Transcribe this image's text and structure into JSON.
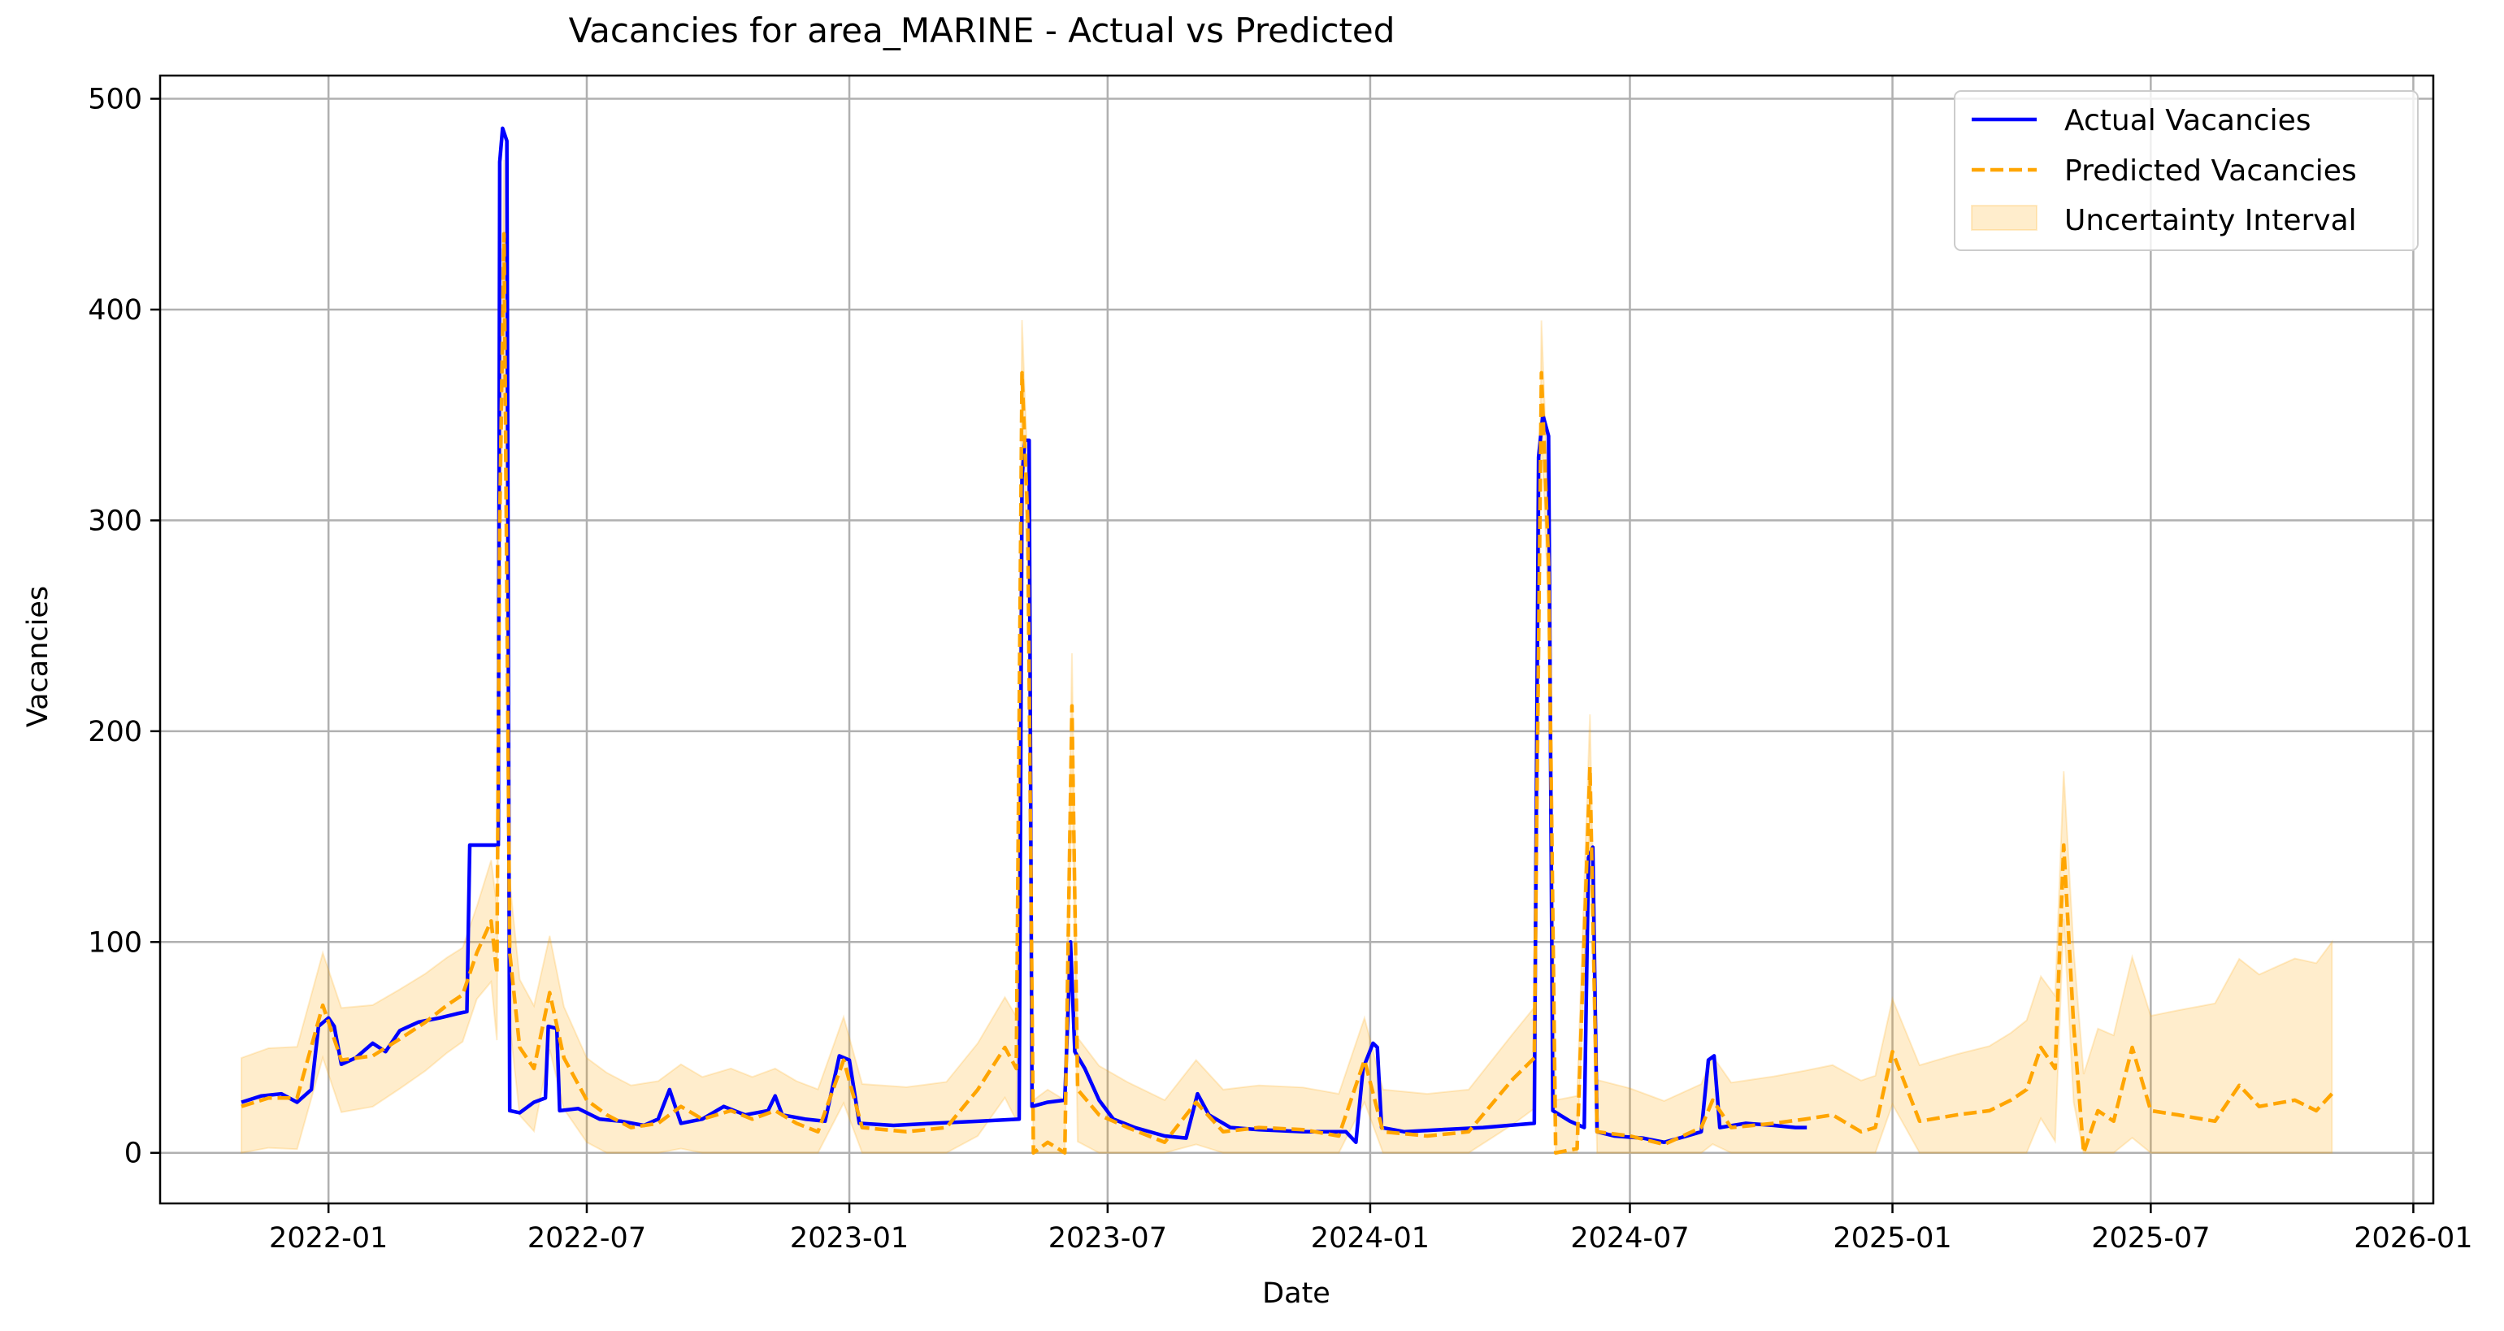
{
  "chart_data": {
    "type": "line",
    "title": "Vacancies for area_MARINE - Actual vs Predicted",
    "xlabel": "Date",
    "ylabel": "Vacancies",
    "x_ticks": [
      "2022-01",
      "2022-07",
      "2023-01",
      "2023-07",
      "2024-01",
      "2024-07",
      "2025-01",
      "2025-07",
      "2026-01"
    ],
    "y_ticks": [
      0,
      100,
      200,
      300,
      400,
      500
    ],
    "xlim": [
      "2021-09-05",
      "2026-01-15"
    ],
    "ylim": [
      -24,
      511
    ],
    "grid": true,
    "legend_position": "top-right",
    "colors": {
      "actual": "#0000ff",
      "predicted": "#ffa500",
      "interval": "#ffa500",
      "grid": "#b0b0b0"
    },
    "series": [
      {
        "name": "Actual Vacancies",
        "style": "solid",
        "points": [
          [
            "2021-11-01",
            24
          ],
          [
            "2021-11-15",
            27
          ],
          [
            "2021-11-29",
            28
          ],
          [
            "2021-12-10",
            24
          ],
          [
            "2021-12-20",
            30
          ],
          [
            "2021-12-25",
            60
          ],
          [
            "2022-01-01",
            64
          ],
          [
            "2022-01-05",
            60
          ],
          [
            "2022-01-10",
            42
          ],
          [
            "2022-01-20",
            45
          ],
          [
            "2022-02-01",
            52
          ],
          [
            "2022-02-10",
            48
          ],
          [
            "2022-02-20",
            58
          ],
          [
            "2022-03-05",
            62
          ],
          [
            "2022-03-20",
            64
          ],
          [
            "2022-04-01",
            66
          ],
          [
            "2022-04-08",
            67
          ],
          [
            "2022-04-10",
            146
          ],
          [
            "2022-04-30",
            146
          ],
          [
            "2022-05-01",
            470
          ],
          [
            "2022-05-03",
            486
          ],
          [
            "2022-05-06",
            480
          ],
          [
            "2022-05-08",
            20
          ],
          [
            "2022-05-15",
            19
          ],
          [
            "2022-05-25",
            24
          ],
          [
            "2022-06-02",
            26
          ],
          [
            "2022-06-04",
            60
          ],
          [
            "2022-06-10",
            59
          ],
          [
            "2022-06-12",
            20
          ],
          [
            "2022-06-25",
            21
          ],
          [
            "2022-07-10",
            16
          ],
          [
            "2022-07-25",
            15
          ],
          [
            "2022-08-10",
            13
          ],
          [
            "2022-08-20",
            16
          ],
          [
            "2022-08-28",
            30
          ],
          [
            "2022-09-05",
            14
          ],
          [
            "2022-09-20",
            16
          ],
          [
            "2022-10-05",
            22
          ],
          [
            "2022-10-20",
            18
          ],
          [
            "2022-11-05",
            20
          ],
          [
            "2022-11-10",
            27
          ],
          [
            "2022-11-15",
            18
          ],
          [
            "2022-12-01",
            16
          ],
          [
            "2022-12-15",
            15
          ],
          [
            "2022-12-25",
            46
          ],
          [
            "2023-01-01",
            44
          ],
          [
            "2023-01-08",
            14
          ],
          [
            "2023-02-01",
            13
          ],
          [
            "2023-03-01",
            14
          ],
          [
            "2023-04-01",
            15
          ],
          [
            "2023-04-30",
            16
          ],
          [
            "2023-05-02",
            320
          ],
          [
            "2023-05-04",
            338
          ],
          [
            "2023-05-07",
            338
          ],
          [
            "2023-05-09",
            22
          ],
          [
            "2023-05-20",
            24
          ],
          [
            "2023-06-01",
            25
          ],
          [
            "2023-06-05",
            100
          ],
          [
            "2023-06-08",
            48
          ],
          [
            "2023-06-15",
            40
          ],
          [
            "2023-06-25",
            25
          ],
          [
            "2023-07-05",
            16
          ],
          [
            "2023-07-20",
            12
          ],
          [
            "2023-08-10",
            8
          ],
          [
            "2023-08-25",
            7
          ],
          [
            "2023-09-02",
            28
          ],
          [
            "2023-09-10",
            18
          ],
          [
            "2023-09-25",
            12
          ],
          [
            "2023-10-15",
            11
          ],
          [
            "2023-11-15",
            10
          ],
          [
            "2023-12-15",
            10
          ],
          [
            "2023-12-22",
            5
          ],
          [
            "2023-12-27",
            40
          ],
          [
            "2024-01-03",
            52
          ],
          [
            "2024-01-06",
            50
          ],
          [
            "2024-01-09",
            12
          ],
          [
            "2024-01-25",
            10
          ],
          [
            "2024-02-20",
            11
          ],
          [
            "2024-03-20",
            12
          ],
          [
            "2024-04-25",
            14
          ],
          [
            "2024-04-28",
            330
          ],
          [
            "2024-05-01",
            350
          ],
          [
            "2024-05-05",
            340
          ],
          [
            "2024-05-08",
            20
          ],
          [
            "2024-05-20",
            15
          ],
          [
            "2024-05-30",
            12
          ],
          [
            "2024-06-02",
            140
          ],
          [
            "2024-06-05",
            145
          ],
          [
            "2024-06-08",
            10
          ],
          [
            "2024-06-20",
            8
          ],
          [
            "2024-07-10",
            7
          ],
          [
            "2024-07-25",
            5
          ],
          [
            "2024-08-10",
            8
          ],
          [
            "2024-08-20",
            10
          ],
          [
            "2024-08-25",
            44
          ],
          [
            "2024-08-29",
            46
          ],
          [
            "2024-09-02",
            12
          ],
          [
            "2024-09-20",
            14
          ],
          [
            "2024-10-10",
            13
          ],
          [
            "2024-10-25",
            12
          ],
          [
            "2024-11-02",
            12
          ]
        ]
      },
      {
        "name": "Predicted Vacancies",
        "style": "dashed",
        "points": [
          [
            "2021-11-01",
            22
          ],
          [
            "2021-11-20",
            26
          ],
          [
            "2021-12-10",
            26
          ],
          [
            "2021-12-28",
            70
          ],
          [
            "2022-01-10",
            44
          ],
          [
            "2022-02-01",
            46
          ],
          [
            "2022-02-20",
            54
          ],
          [
            "2022-03-10",
            62
          ],
          [
            "2022-03-25",
            70
          ],
          [
            "2022-04-05",
            75
          ],
          [
            "2022-04-15",
            95
          ],
          [
            "2022-04-25",
            110
          ],
          [
            "2022-04-29",
            85
          ],
          [
            "2022-05-01",
            300
          ],
          [
            "2022-05-04",
            436
          ],
          [
            "2022-05-08",
            95
          ],
          [
            "2022-05-15",
            50
          ],
          [
            "2022-05-25",
            40
          ],
          [
            "2022-06-05",
            76
          ],
          [
            "2022-06-15",
            45
          ],
          [
            "2022-07-01",
            25
          ],
          [
            "2022-07-15",
            18
          ],
          [
            "2022-08-01",
            12
          ],
          [
            "2022-08-20",
            14
          ],
          [
            "2022-09-05",
            22
          ],
          [
            "2022-09-20",
            16
          ],
          [
            "2022-10-10",
            20
          ],
          [
            "2022-10-25",
            16
          ],
          [
            "2022-11-10",
            20
          ],
          [
            "2022-11-25",
            14
          ],
          [
            "2022-12-10",
            10
          ],
          [
            "2022-12-28",
            44
          ],
          [
            "2023-01-10",
            12
          ],
          [
            "2023-02-10",
            10
          ],
          [
            "2023-03-10",
            12
          ],
          [
            "2023-04-01",
            30
          ],
          [
            "2023-04-20",
            50
          ],
          [
            "2023-04-28",
            40
          ],
          [
            "2023-05-02",
            370
          ],
          [
            "2023-05-06",
            300
          ],
          [
            "2023-05-10",
            0
          ],
          [
            "2023-05-20",
            5
          ],
          [
            "2023-06-01",
            0
          ],
          [
            "2023-06-06",
            212
          ],
          [
            "2023-06-10",
            30
          ],
          [
            "2023-06-25",
            18
          ],
          [
            "2023-07-15",
            12
          ],
          [
            "2023-08-10",
            5
          ],
          [
            "2023-09-01",
            24
          ],
          [
            "2023-09-20",
            10
          ],
          [
            "2023-10-15",
            12
          ],
          [
            "2023-11-15",
            11
          ],
          [
            "2023-12-10",
            8
          ],
          [
            "2023-12-28",
            44
          ],
          [
            "2024-01-10",
            10
          ],
          [
            "2024-02-10",
            8
          ],
          [
            "2024-03-10",
            10
          ],
          [
            "2024-04-10",
            35
          ],
          [
            "2024-04-25",
            45
          ],
          [
            "2024-04-30",
            370
          ],
          [
            "2024-05-05",
            280
          ],
          [
            "2024-05-10",
            0
          ],
          [
            "2024-05-25",
            2
          ],
          [
            "2024-06-03",
            183
          ],
          [
            "2024-06-08",
            10
          ],
          [
            "2024-07-01",
            8
          ],
          [
            "2024-07-25",
            4
          ],
          [
            "2024-08-20",
            12
          ],
          [
            "2024-08-28",
            25
          ],
          [
            "2024-09-10",
            12
          ],
          [
            "2024-10-10",
            14
          ],
          [
            "2024-11-01",
            16
          ],
          [
            "2024-11-20",
            18
          ],
          [
            "2024-12-10",
            10
          ],
          [
            "2024-12-20",
            12
          ],
          [
            "2025-01-01",
            48
          ],
          [
            "2025-01-20",
            15
          ],
          [
            "2025-02-15",
            18
          ],
          [
            "2025-03-10",
            20
          ],
          [
            "2025-03-25",
            25
          ],
          [
            "2025-04-05",
            30
          ],
          [
            "2025-04-15",
            50
          ],
          [
            "2025-04-25",
            40
          ],
          [
            "2025-05-01",
            146
          ],
          [
            "2025-05-08",
            60
          ],
          [
            "2025-05-15",
            0
          ],
          [
            "2025-05-25",
            20
          ],
          [
            "2025-06-05",
            15
          ],
          [
            "2025-06-18",
            50
          ],
          [
            "2025-07-01",
            20
          ],
          [
            "2025-07-20",
            18
          ],
          [
            "2025-08-15",
            15
          ],
          [
            "2025-09-01",
            32
          ],
          [
            "2025-09-15",
            22
          ],
          [
            "2025-10-10",
            25
          ],
          [
            "2025-10-25",
            20
          ],
          [
            "2025-11-05",
            28
          ]
        ]
      }
    ],
    "uncertainty_interval": {
      "name": "Uncertainty Interval",
      "width_points": [
        [
          "2021-11-01",
          23
        ],
        [
          "2022-01-01",
          25
        ],
        [
          "2022-04-15",
          22
        ],
        [
          "2022-05-04",
          35
        ],
        [
          "2022-06-01",
          28
        ],
        [
          "2022-07-01",
          20
        ],
        [
          "2022-12-01",
          20
        ],
        [
          "2023-04-01",
          22
        ],
        [
          "2023-05-02",
          25
        ],
        [
          "2023-06-06",
          25
        ],
        [
          "2023-08-01",
          20
        ],
        [
          "2024-04-01",
          20
        ],
        [
          "2024-05-01",
          25
        ],
        [
          "2024-06-03",
          25
        ],
        [
          "2024-08-01",
          20
        ],
        [
          "2025-01-01",
          25
        ],
        [
          "2025-05-01",
          35
        ],
        [
          "2025-07-01",
          45
        ],
        [
          "2025-09-01",
          60
        ],
        [
          "2025-11-05",
          72
        ]
      ]
    }
  },
  "legend": {
    "actual": "Actual Vacancies",
    "predicted": "Predicted Vacancies",
    "interval": "Uncertainty Interval"
  }
}
